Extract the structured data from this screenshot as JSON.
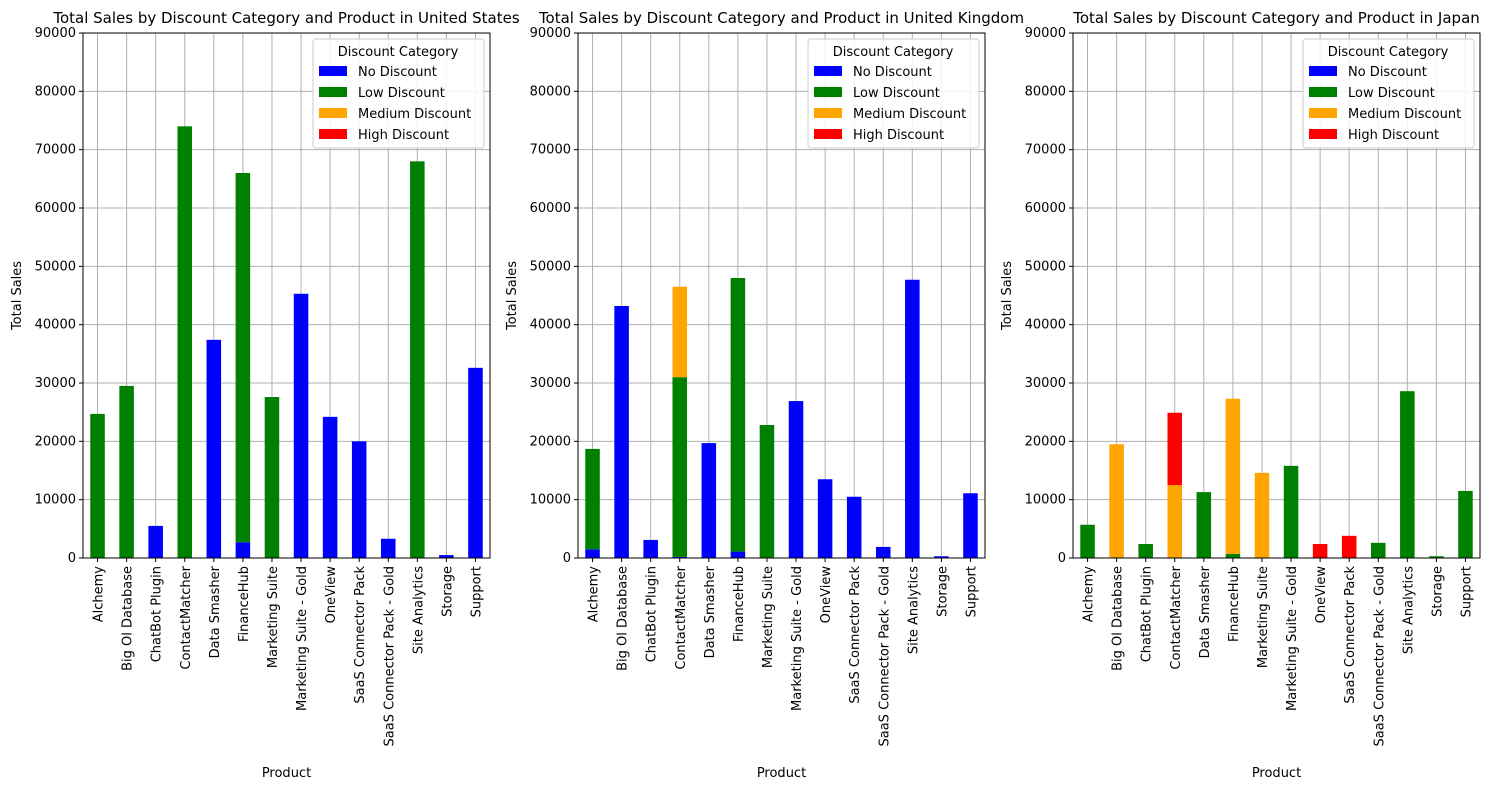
{
  "chart_data": [
    {
      "type": "bar",
      "stacked": true,
      "title": "Total Sales by Discount Category and Product in United States",
      "xlabel": "Product",
      "ylabel": "Total Sales",
      "ylim": [
        0,
        90000
      ],
      "yticks": [
        0,
        10000,
        20000,
        30000,
        40000,
        50000,
        60000,
        70000,
        80000,
        90000
      ],
      "grid": true,
      "legend": {
        "title": "Discount Category",
        "placement": "top-right"
      },
      "categories": [
        "Alchemy",
        "Big Ol Database",
        "ChatBot Plugin",
        "ContactMatcher",
        "Data Smasher",
        "FinanceHub",
        "Marketing Suite",
        "Marketing Suite - Gold",
        "OneView",
        "SaaS Connector Pack",
        "SaaS Connector Pack - Gold",
        "Site Analytics",
        "Storage",
        "Support"
      ],
      "series": [
        {
          "name": "No Discount",
          "color": "#0000ff",
          "values": [
            0,
            0,
            5500,
            0,
            37400,
            2700,
            0,
            45300,
            24200,
            20000,
            3300,
            0,
            500,
            32600
          ]
        },
        {
          "name": "Low Discount",
          "color": "#008000",
          "values": [
            24700,
            29500,
            0,
            74000,
            0,
            63300,
            27600,
            0,
            0,
            0,
            0,
            68000,
            0,
            0
          ]
        },
        {
          "name": "Medium Discount",
          "color": "#ffa500",
          "values": [
            0,
            0,
            0,
            0,
            0,
            0,
            0,
            0,
            0,
            0,
            0,
            0,
            0,
            0
          ]
        },
        {
          "name": "High Discount",
          "color": "#ff0000",
          "values": [
            0,
            0,
            0,
            0,
            0,
            0,
            0,
            0,
            0,
            0,
            0,
            0,
            0,
            0
          ]
        }
      ]
    },
    {
      "type": "bar",
      "stacked": true,
      "title": "Total Sales by Discount Category and Product in United Kingdom",
      "xlabel": "Product",
      "ylabel": "Total Sales",
      "ylim": [
        0,
        90000
      ],
      "yticks": [
        0,
        10000,
        20000,
        30000,
        40000,
        50000,
        60000,
        70000,
        80000,
        90000
      ],
      "grid": true,
      "legend": {
        "title": "Discount Category",
        "placement": "top-right"
      },
      "categories": [
        "Alchemy",
        "Big Ol Database",
        "ChatBot Plugin",
        "ContactMatcher",
        "Data Smasher",
        "FinanceHub",
        "Marketing Suite",
        "Marketing Suite - Gold",
        "OneView",
        "SaaS Connector Pack",
        "SaaS Connector Pack - Gold",
        "Site Analytics",
        "Storage",
        "Support"
      ],
      "series": [
        {
          "name": "No Discount",
          "color": "#0000ff",
          "values": [
            1500,
            43200,
            3100,
            200,
            19700,
            1100,
            0,
            26900,
            13500,
            10500,
            1900,
            47700,
            300,
            11100
          ]
        },
        {
          "name": "Low Discount",
          "color": "#008000",
          "values": [
            17200,
            0,
            0,
            30800,
            0,
            46900,
            22800,
            0,
            0,
            0,
            0,
            0,
            0,
            0
          ]
        },
        {
          "name": "Medium Discount",
          "color": "#ffa500",
          "values": [
            0,
            0,
            0,
            15500,
            0,
            0,
            0,
            0,
            0,
            0,
            0,
            0,
            0,
            0
          ]
        },
        {
          "name": "High Discount",
          "color": "#ff0000",
          "values": [
            0,
            0,
            0,
            0,
            0,
            0,
            0,
            0,
            0,
            0,
            0,
            0,
            0,
            0
          ]
        }
      ]
    },
    {
      "type": "bar",
      "stacked": true,
      "title": "Total Sales by Discount Category and Product in Japan",
      "xlabel": "Product",
      "ylabel": "Total Sales",
      "ylim": [
        0,
        90000
      ],
      "yticks": [
        0,
        10000,
        20000,
        30000,
        40000,
        50000,
        60000,
        70000,
        80000,
        90000
      ],
      "grid": true,
      "legend": {
        "title": "Discount Category",
        "placement": "top-right"
      },
      "categories": [
        "Alchemy",
        "Big Ol Database",
        "ChatBot Plugin",
        "ContactMatcher",
        "Data Smasher",
        "FinanceHub",
        "Marketing Suite",
        "Marketing Suite - Gold",
        "OneView",
        "SaaS Connector Pack",
        "SaaS Connector Pack - Gold",
        "Site Analytics",
        "Storage",
        "Support"
      ],
      "series": [
        {
          "name": "No Discount",
          "color": "#0000ff",
          "values": [
            0,
            0,
            0,
            0,
            0,
            0,
            0,
            0,
            0,
            0,
            0,
            0,
            0,
            0
          ]
        },
        {
          "name": "Low Discount",
          "color": "#008000",
          "values": [
            5700,
            0,
            2400,
            0,
            11300,
            700,
            0,
            15800,
            0,
            0,
            2600,
            28600,
            300,
            11500
          ]
        },
        {
          "name": "Medium Discount",
          "color": "#ffa500",
          "values": [
            0,
            19500,
            0,
            12500,
            0,
            26600,
            14600,
            0,
            0,
            0,
            0,
            0,
            0,
            0
          ]
        },
        {
          "name": "High Discount",
          "color": "#ff0000",
          "values": [
            0,
            0,
            0,
            12400,
            0,
            0,
            0,
            0,
            2400,
            3800,
            0,
            0,
            0,
            0
          ]
        }
      ]
    }
  ]
}
